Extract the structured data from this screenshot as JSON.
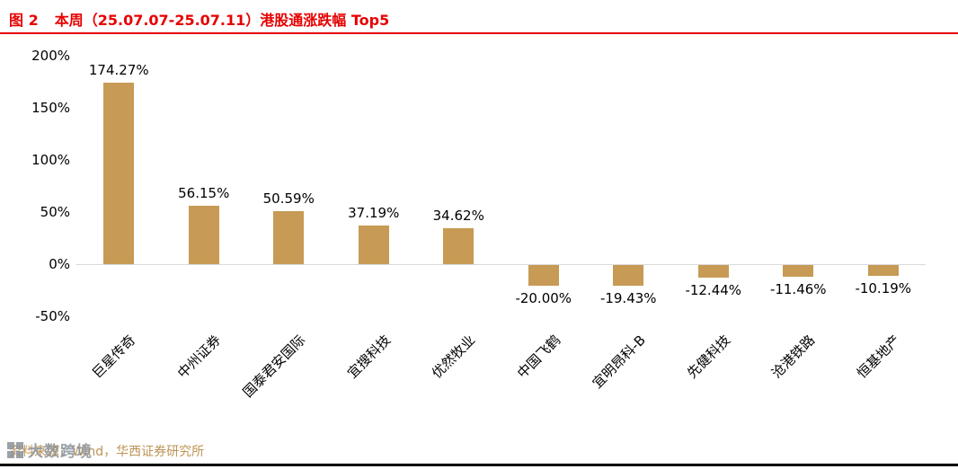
{
  "header": {
    "figure_label": "图 2",
    "title": "本周（25.07.07-25.07.11）港股通涨跌幅 Top5"
  },
  "chart_data": {
    "type": "bar",
    "title": "本周（25.07.07-25.07.11）港股通涨跌幅 Top5",
    "categories": [
      "巨星传奇",
      "中州证券",
      "国泰君安国际",
      "宜搜科技",
      "优然牧业",
      "中国飞鹤",
      "宜明昂科-B",
      "先健科技",
      "沧港铁路",
      "恒基地产"
    ],
    "values": [
      174.27,
      56.15,
      50.59,
      37.19,
      34.62,
      -20.0,
      -19.43,
      -12.44,
      -11.46,
      -10.19
    ],
    "value_labels": [
      "174.27%",
      "56.15%",
      "50.59%",
      "37.19%",
      "34.62%",
      "-20.00%",
      "-19.43%",
      "-12.44%",
      "-11.46%",
      "-10.19%"
    ],
    "xlabel": "",
    "ylabel": "",
    "ylim": [
      -50,
      200
    ],
    "ytick_labels": [
      "200%",
      "150%",
      "100%",
      "50%",
      "0%",
      "-50%"
    ],
    "ytick_values": [
      200,
      150,
      100,
      50,
      0,
      -50
    ],
    "grid": false,
    "legend": "none",
    "bar_color": "#c79a55"
  },
  "footer": {
    "source": "资料来源：Wind，华西证券研究所",
    "watermark": "大数跨境"
  },
  "colors": {
    "accent_red": "#e60000",
    "bar": "#c79a55",
    "source_text": "#be9455",
    "axis_line": "#d9d9d9"
  }
}
